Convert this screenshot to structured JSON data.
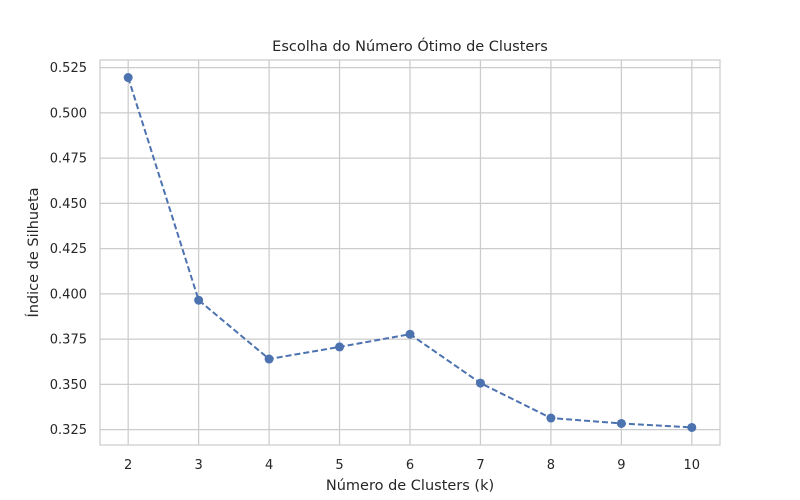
{
  "chart_data": {
    "type": "line",
    "title": "Escolha do Número Ótimo de Clusters",
    "xlabel": "Número de Clusters (k)",
    "ylabel": "Índice de Silhueta",
    "x": [
      2,
      3,
      4,
      5,
      6,
      7,
      8,
      9,
      10
    ],
    "series": [
      {
        "values": [
          0.5195,
          0.3965,
          0.364,
          0.3707,
          0.3777,
          0.3507,
          0.3314,
          0.3284,
          0.3262
        ],
        "color": "#4c72b0",
        "line_style": "dashed",
        "marker": "circle"
      }
    ],
    "xticks": [
      "2",
      "3",
      "4",
      "5",
      "6",
      "7",
      "8",
      "9",
      "10"
    ],
    "yticks": [
      "0.325",
      "0.350",
      "0.375",
      "0.400",
      "0.425",
      "0.450",
      "0.475",
      "0.500",
      "0.525"
    ],
    "xlim": [
      1.6,
      10.4
    ],
    "ylim": [
      0.3165,
      0.5292
    ],
    "grid": true,
    "colors": {
      "grid": "#cccccc",
      "frame": "#cccccc",
      "text": "#262626"
    }
  }
}
